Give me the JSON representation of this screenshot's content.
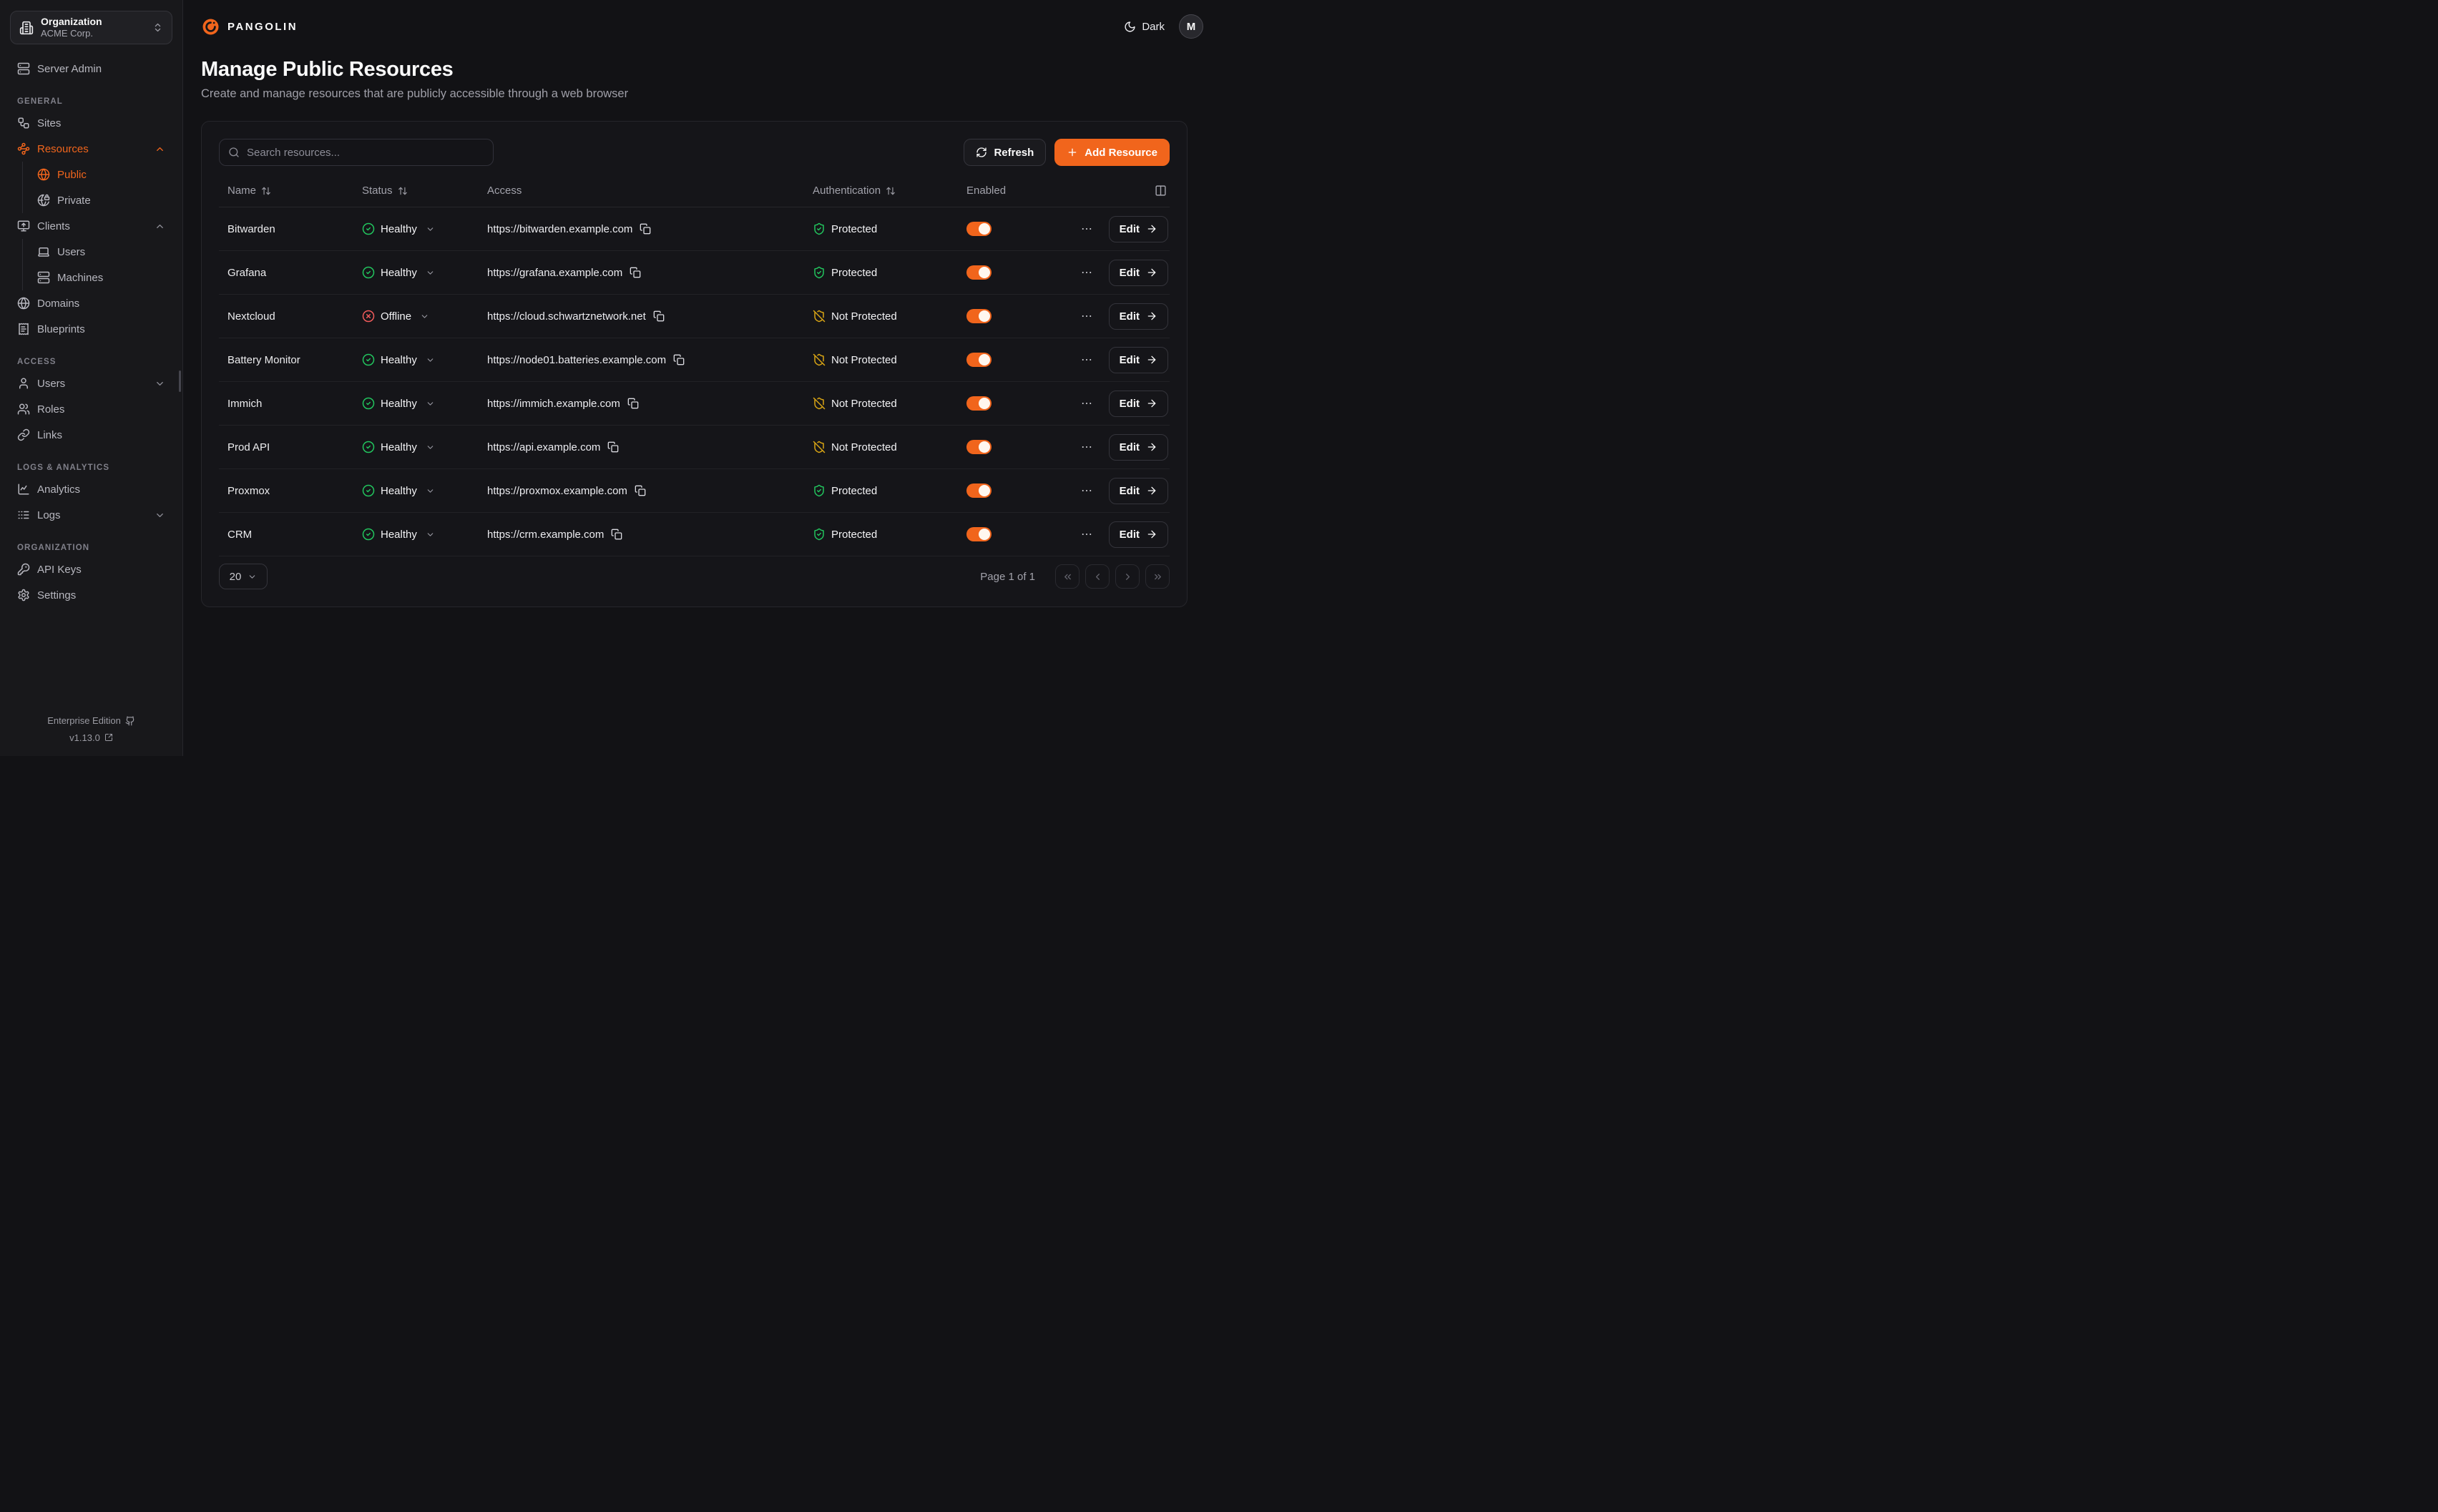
{
  "brand": {
    "name": "PANGOLIN",
    "logo_icon": "pangolin-logo-icon"
  },
  "org_selector": {
    "label": "Organization",
    "value": "ACME Corp.",
    "icon": "building-icon",
    "chevron_icon": "chevrons-up-down-icon"
  },
  "header": {
    "theme_label": "Dark",
    "theme_icon": "moon-icon",
    "avatar_initial": "M"
  },
  "sidebar": {
    "top_items": [
      {
        "label": "Server Admin",
        "icon": "server-icon"
      }
    ],
    "sections": [
      {
        "label": "GENERAL",
        "items": [
          {
            "label": "Sites",
            "icon": "workflow-icon"
          },
          {
            "label": "Resources",
            "icon": "waypoints-icon",
            "active": true,
            "chevron": "up",
            "children": [
              {
                "label": "Public",
                "icon": "globe-icon",
                "active": true
              },
              {
                "label": "Private",
                "icon": "globe-lock-icon"
              }
            ]
          },
          {
            "label": "Clients",
            "icon": "monitor-up-icon",
            "chevron": "up",
            "children": [
              {
                "label": "Users",
                "icon": "laptop-icon"
              },
              {
                "label": "Machines",
                "icon": "server-icon"
              }
            ]
          },
          {
            "label": "Domains",
            "icon": "globe-icon"
          },
          {
            "label": "Blueprints",
            "icon": "receipt-icon"
          }
        ]
      },
      {
        "label": "ACCESS",
        "items": [
          {
            "label": "Users",
            "icon": "user-icon",
            "chevron": "down"
          },
          {
            "label": "Roles",
            "icon": "users-icon"
          },
          {
            "label": "Links",
            "icon": "link-icon"
          }
        ]
      },
      {
        "label": "LOGS & ANALYTICS",
        "items": [
          {
            "label": "Analytics",
            "icon": "chart-line-icon"
          },
          {
            "label": "Logs",
            "icon": "logs-icon",
            "chevron": "down"
          }
        ]
      },
      {
        "label": "ORGANIZATION",
        "items": [
          {
            "label": "API Keys",
            "icon": "key-icon"
          },
          {
            "label": "Settings",
            "icon": "gear-icon"
          }
        ]
      }
    ],
    "footer": {
      "edition": "Enterprise Edition",
      "edition_icon": "github-icon",
      "version": "v1.13.0",
      "version_icon": "external-link-icon"
    }
  },
  "page": {
    "title": "Manage Public Resources",
    "subtitle": "Create and manage resources that are publicly accessible through a web browser"
  },
  "toolbar": {
    "search_placeholder": "Search resources...",
    "refresh_label": "Refresh",
    "add_resource_label": "Add Resource"
  },
  "table": {
    "columns": [
      {
        "label": "Name",
        "sortable": true
      },
      {
        "label": "Status",
        "sortable": true
      },
      {
        "label": "Access",
        "sortable": false
      },
      {
        "label": "Authentication",
        "sortable": true
      },
      {
        "label": "Enabled",
        "sortable": false
      }
    ],
    "rows": [
      {
        "name": "Bitwarden",
        "status": "Healthy",
        "status_kind": "healthy",
        "url": "https://bitwarden.example.com",
        "auth": "Protected",
        "auth_kind": "protected",
        "enabled": true,
        "edit_label": "Edit"
      },
      {
        "name": "Grafana",
        "status": "Healthy",
        "status_kind": "healthy",
        "url": "https://grafana.example.com",
        "auth": "Protected",
        "auth_kind": "protected",
        "enabled": true,
        "edit_label": "Edit"
      },
      {
        "name": "Nextcloud",
        "status": "Offline",
        "status_kind": "offline",
        "url": "https://cloud.schwartznetwork.net",
        "auth": "Not Protected",
        "auth_kind": "not_protected",
        "enabled": true,
        "edit_label": "Edit"
      },
      {
        "name": "Battery Monitor",
        "status": "Healthy",
        "status_kind": "healthy",
        "url": "https://node01.batteries.example.com",
        "auth": "Not Protected",
        "auth_kind": "not_protected",
        "enabled": true,
        "edit_label": "Edit"
      },
      {
        "name": "Immich",
        "status": "Healthy",
        "status_kind": "healthy",
        "url": "https://immich.example.com",
        "auth": "Not Protected",
        "auth_kind": "not_protected",
        "enabled": true,
        "edit_label": "Edit"
      },
      {
        "name": "Prod API",
        "status": "Healthy",
        "status_kind": "healthy",
        "url": "https://api.example.com",
        "auth": "Not Protected",
        "auth_kind": "not_protected",
        "enabled": true,
        "edit_label": "Edit"
      },
      {
        "name": "Proxmox",
        "status": "Healthy",
        "status_kind": "healthy",
        "url": "https://proxmox.example.com",
        "auth": "Protected",
        "auth_kind": "protected",
        "enabled": true,
        "edit_label": "Edit"
      },
      {
        "name": "CRM",
        "status": "Healthy",
        "status_kind": "healthy",
        "url": "https://crm.example.com",
        "auth": "Protected",
        "auth_kind": "protected",
        "enabled": true,
        "edit_label": "Edit"
      }
    ]
  },
  "pagination": {
    "page_size": "20",
    "page_info": "Page 1 of 1"
  },
  "colors": {
    "accent_orange": "#f1651c",
    "healthy_green": "#22c55e",
    "offline_red": "#f15b5b",
    "warning_amber": "#d9a514"
  }
}
